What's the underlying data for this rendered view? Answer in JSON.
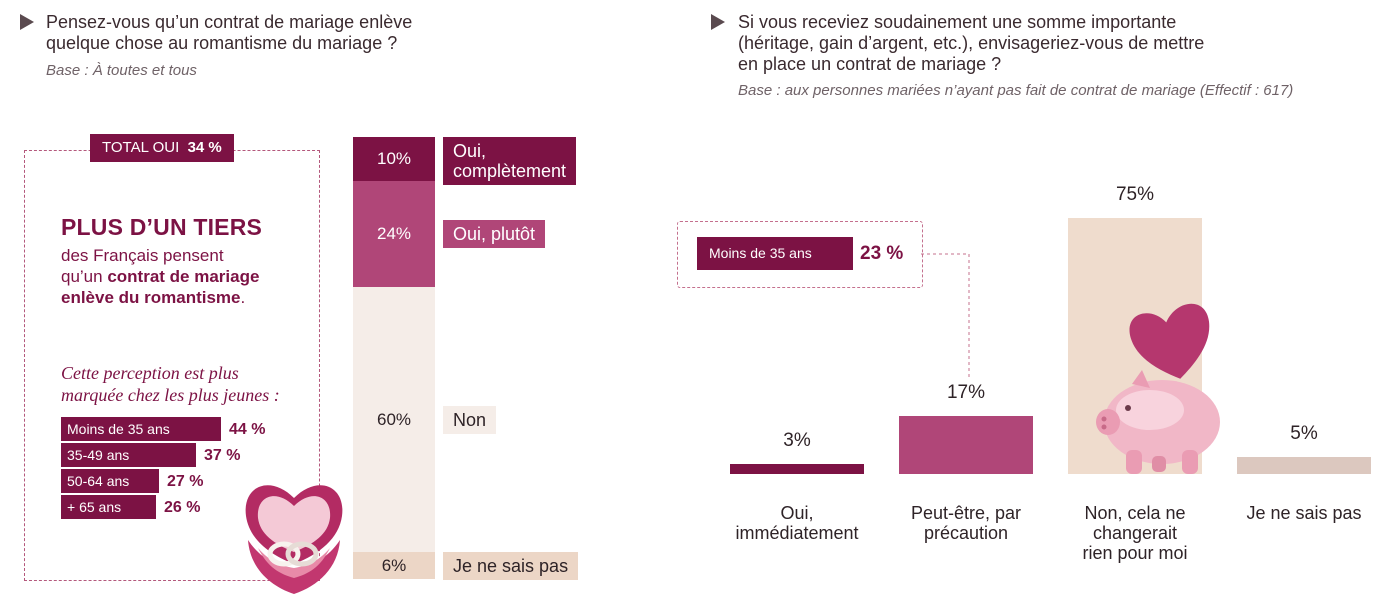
{
  "left": {
    "question": "Pensez-vous qu’un contrat de mariage enlève quelque chose au romantisme du mariage ?",
    "question_line1": "Pensez-vous qu’un contrat de mariage enlève",
    "question_line2": "quelque chose au romantisme du mariage ?",
    "base": "Base : À toutes et tous",
    "total_label": "TOTAL OUI",
    "total_value": "34 %",
    "headline": "PLUS D’UN TIERS",
    "desc_line1": "des Français pensent",
    "desc_line2_a": "qu’un ",
    "desc_line2_b": "contrat de mariage",
    "desc_line3_b": "enlève du romantisme",
    "desc_line3_c": ".",
    "note_line1": "Cette perception est plus",
    "note_line2": "marquée chez les plus jeunes :",
    "ages": [
      {
        "label": "Moins de 35 ans",
        "value": 44,
        "display": "44 %"
      },
      {
        "label": "35-49 ans",
        "value": 37,
        "display": "37 %"
      },
      {
        "label": "50-64 ans",
        "value": 27,
        "display": "27 %"
      },
      {
        "label": "+ 65 ans",
        "value": 26,
        "display": "26 %"
      }
    ]
  },
  "right": {
    "question_line1": "Si vous receviez soudainement une somme importante",
    "question_line2": "(héritage, gain d’argent, etc.), envisageriez-vous de mettre",
    "question_line3": "en place un contrat de mariage ?",
    "base": "Base : aux personnes mariées n’ayant pas fait de contrat de mariage (Effectif : 617)",
    "young_label": "Moins de 35 ans",
    "young_value": "23 %"
  },
  "chart_data": [
    {
      "type": "bar",
      "stacked": true,
      "categories": [
        "Oui, complètement",
        "Oui, plutôt",
        "Non",
        "Je ne sais pas"
      ],
      "values": [
        10,
        24,
        60,
        6
      ],
      "labels": [
        "10%",
        "24%",
        "60%",
        "6%"
      ],
      "label_lines": [
        [
          "Oui,",
          "complètement"
        ],
        [
          "Oui, plutôt"
        ],
        [
          "Non"
        ],
        [
          "Je ne sais pas"
        ]
      ],
      "colors": [
        "#7c1244",
        "#b04678",
        "#f5ede8",
        "#ecd6c6"
      ]
    },
    {
      "type": "bar",
      "categories": [
        "Oui, immédiatement",
        "Peut-être, par précaution",
        "Non, cela ne changerait rien pour moi",
        "Je ne sais pas"
      ],
      "category_lines": [
        [
          "Oui,",
          "immédiatement"
        ],
        [
          "Peut-être, par",
          "précaution"
        ],
        [
          "Non, cela ne",
          "changerait",
          "rien pour moi"
        ],
        [
          "Je ne sais pas"
        ]
      ],
      "values": [
        3,
        17,
        75,
        5
      ],
      "labels": [
        "3%",
        "17%",
        "75%",
        "5%"
      ],
      "colors": [
        "#7c1244",
        "#b04678",
        "#efdccd",
        "#dcc8bf"
      ]
    }
  ]
}
